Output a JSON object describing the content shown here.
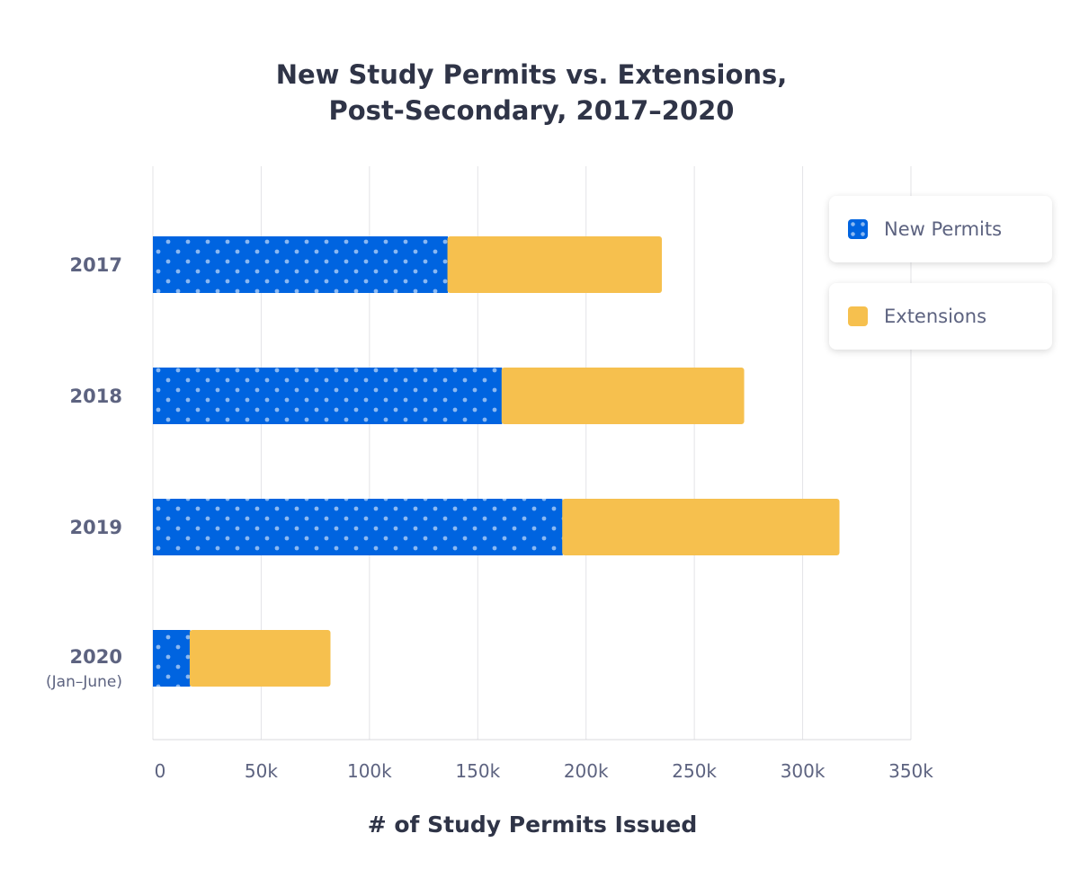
{
  "chart_data": {
    "type": "bar",
    "orientation": "horizontal",
    "stacked": true,
    "title": [
      "New Study Permits vs. Extensions,",
      "Post-Secondary, 2017–2020"
    ],
    "categories": [
      "2017",
      "2018",
      "2019",
      "2020"
    ],
    "category_sublabels": [
      "",
      "",
      "",
      "(Jan–June)"
    ],
    "series": [
      {
        "name": "New Permits",
        "values": [
          136,
          161,
          189,
          17
        ],
        "color": "#0064e0",
        "pattern": "dots"
      },
      {
        "name": "Extensions",
        "values": [
          99,
          112,
          128,
          65
        ],
        "color": "#f6c04e"
      }
    ],
    "xlabel": "# of Study Permits Issued",
    "xlim": [
      0,
      350
    ],
    "xticks": [
      "0",
      "50k",
      "100k",
      "150k",
      "200k",
      "250k",
      "300k",
      "350k"
    ],
    "units": "thousands",
    "grid": "vertical",
    "legend_placement": "top-right"
  }
}
